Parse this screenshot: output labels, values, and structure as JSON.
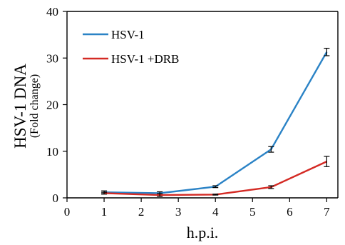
{
  "chart_data": {
    "type": "line",
    "title": "",
    "xlabel": "h.p.i.",
    "ylabel": "HSV-1 DNA",
    "ylabel_sub": "(Fold change)",
    "xlim": [
      0,
      7.3
    ],
    "ylim": [
      0,
      40
    ],
    "xticks": [
      0,
      1,
      2,
      3,
      4,
      5,
      6,
      7
    ],
    "yticks": [
      0,
      10,
      20,
      30,
      40
    ],
    "grid": false,
    "legend_position": "top-left",
    "series": [
      {
        "name": "HSV-1",
        "color": "#2b83c6",
        "x": [
          1,
          2.5,
          4,
          5.5,
          7
        ],
        "y": [
          1.2,
          1.0,
          2.4,
          10.4,
          31.3
        ],
        "err": [
          0.3,
          0.3,
          0.2,
          0.6,
          0.8
        ]
      },
      {
        "name": "HSV-1 +DRB",
        "color": "#d42a24",
        "x": [
          1,
          2.5,
          4,
          5.5,
          7
        ],
        "y": [
          1.0,
          0.6,
          0.7,
          2.3,
          7.8
        ],
        "err": [
          0.2,
          0.3,
          0.1,
          0.3,
          1.1
        ]
      }
    ]
  }
}
